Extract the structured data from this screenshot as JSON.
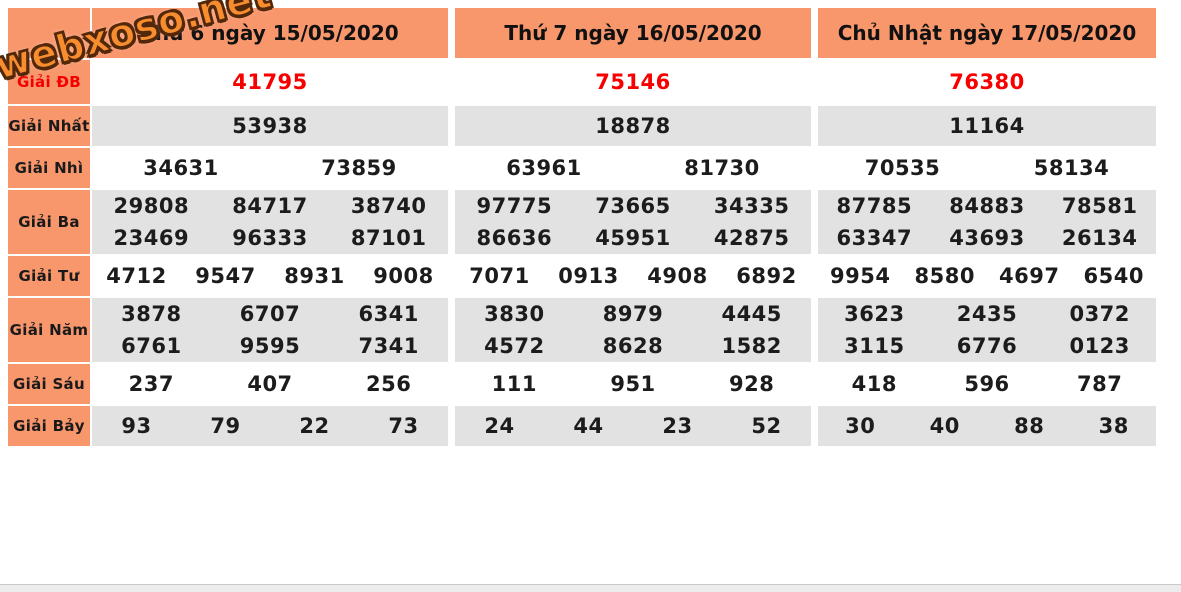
{
  "watermark": {
    "text": "webxoso.net"
  },
  "colors": {
    "header_orange": "#f8966c",
    "gray_row": "#e2e2e2",
    "special_red": "#f80000",
    "number_black": "#1c1c1c"
  },
  "table": {
    "prize_labels": [
      "Giải ĐB",
      "Giải Nhất",
      "Giải Nhì",
      "Giải Ba",
      "Giải Tư",
      "Giải Năm",
      "Giải Sáu",
      "Giải Bảy"
    ],
    "days": [
      {
        "header": "Thứ 6 ngày 15/05/2020",
        "rows": [
          [
            [
              "41795"
            ]
          ],
          [
            [
              "53938"
            ]
          ],
          [
            [
              "34631",
              "73859"
            ]
          ],
          [
            [
              "29808",
              "84717",
              "38740"
            ],
            [
              "23469",
              "96333",
              "87101"
            ]
          ],
          [
            [
              "4712",
              "9547",
              "8931",
              "9008"
            ]
          ],
          [
            [
              "3878",
              "6707",
              "6341"
            ],
            [
              "6761",
              "9595",
              "7341"
            ]
          ],
          [
            [
              "237",
              "407",
              "256"
            ]
          ],
          [
            [
              "93",
              "79",
              "22",
              "73"
            ]
          ]
        ]
      },
      {
        "header": "Thứ 7 ngày 16/05/2020",
        "rows": [
          [
            [
              "75146"
            ]
          ],
          [
            [
              "18878"
            ]
          ],
          [
            [
              "63961",
              "81730"
            ]
          ],
          [
            [
              "97775",
              "73665",
              "34335"
            ],
            [
              "86636",
              "45951",
              "42875"
            ]
          ],
          [
            [
              "7071",
              "0913",
              "4908",
              "6892"
            ]
          ],
          [
            [
              "3830",
              "8979",
              "4445"
            ],
            [
              "4572",
              "8628",
              "1582"
            ]
          ],
          [
            [
              "111",
              "951",
              "928"
            ]
          ],
          [
            [
              "24",
              "44",
              "23",
              "52"
            ]
          ]
        ]
      },
      {
        "header": "Chủ Nhật ngày 17/05/2020",
        "rows": [
          [
            [
              "76380"
            ]
          ],
          [
            [
              "11164"
            ]
          ],
          [
            [
              "70535",
              "58134"
            ]
          ],
          [
            [
              "87785",
              "84883",
              "78581"
            ],
            [
              "63347",
              "43693",
              "26134"
            ]
          ],
          [
            [
              "9954",
              "8580",
              "4697",
              "6540"
            ]
          ],
          [
            [
              "3623",
              "2435",
              "0372"
            ],
            [
              "3115",
              "6776",
              "0123"
            ]
          ],
          [
            [
              "418",
              "596",
              "787"
            ]
          ],
          [
            [
              "30",
              "40",
              "88",
              "38"
            ]
          ]
        ]
      }
    ]
  }
}
